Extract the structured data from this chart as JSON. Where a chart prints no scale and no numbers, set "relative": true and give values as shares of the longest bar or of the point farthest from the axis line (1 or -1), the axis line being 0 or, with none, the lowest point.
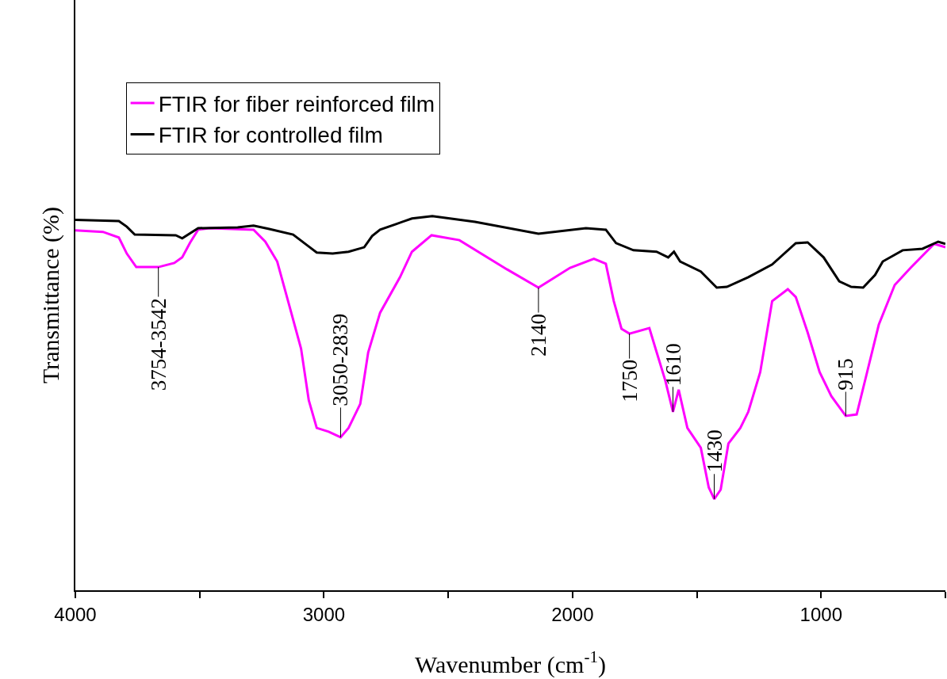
{
  "chart_data": {
    "type": "line",
    "relative": true,
    "xlabel": "Wavenumber (cm$^{-1}$)",
    "ylabel": "Transmittance (%)",
    "xlim": [
      4000,
      500
    ],
    "xticks": [
      4000,
      {
        "value": 3500,
        "label": null
      },
      3000,
      {
        "value": 2500,
        "label": null
      },
      2000,
      {
        "value": 1500,
        "label": null
      },
      1000,
      {
        "value": 500,
        "label": null
      }
    ],
    "legend": "top left",
    "grid": false,
    "marker": "none",
    "line_style": "solid",
    "tick_labels": "x",
    "series": [
      {
        "name": "FTIR for fiber reinforced film",
        "color": "#ff00ff",
        "x": [
          4000,
          3889,
          3825,
          3793,
          3755,
          3666,
          3602,
          3570,
          3538,
          3506,
          3459,
          3283,
          3236,
          3188,
          3140,
          3092,
          3061,
          3029,
          2981,
          2933,
          2901,
          2854,
          2822,
          2774,
          2694,
          2646,
          2567,
          2455,
          2264,
          2137,
          2010,
          1914,
          1866,
          1834,
          1803,
          1771,
          1691,
          1666,
          1627,
          1596,
          1573,
          1538,
          1484,
          1452,
          1430,
          1404,
          1373,
          1325,
          1293,
          1245,
          1197,
          1134,
          1102,
          1054,
          1006,
          959,
          901,
          857,
          815,
          768,
          704,
          640,
          545,
          500
        ],
        "values": [
          0.962,
          0.958,
          0.943,
          0.9,
          0.864,
          0.864,
          0.875,
          0.89,
          0.93,
          0.964,
          0.968,
          0.964,
          0.932,
          0.879,
          0.763,
          0.646,
          0.508,
          0.434,
          0.424,
          0.409,
          0.434,
          0.498,
          0.636,
          0.742,
          0.837,
          0.905,
          0.949,
          0.936,
          0.858,
          0.809,
          0.862,
          0.886,
          0.873,
          0.773,
          0.699,
          0.686,
          0.701,
          0.646,
          0.561,
          0.477,
          0.536,
          0.434,
          0.381,
          0.275,
          0.244,
          0.269,
          0.392,
          0.434,
          0.477,
          0.583,
          0.773,
          0.805,
          0.784,
          0.689,
          0.583,
          0.519,
          0.466,
          0.47,
          0.583,
          0.71,
          0.816,
          0.862,
          0.926,
          0.917
        ]
      },
      {
        "name": "FTIR for controlled film",
        "color": "#000000",
        "x": [
          4000,
          3825,
          3793,
          3761,
          3596,
          3570,
          3506,
          3347,
          3283,
          3220,
          3124,
          3061,
          3029,
          2965,
          2901,
          2838,
          2806,
          2774,
          2710,
          2646,
          2564,
          2392,
          2137,
          1946,
          1866,
          1825,
          1755,
          1662,
          1615,
          1592,
          1567,
          1484,
          1420,
          1379,
          1293,
          1197,
          1102,
          1054,
          990,
          927,
          879,
          831,
          783,
          752,
          672,
          592,
          529,
          500
        ],
        "values": [
          0.99,
          0.987,
          0.972,
          0.951,
          0.949,
          0.941,
          0.968,
          0.97,
          0.975,
          0.966,
          0.951,
          0.919,
          0.903,
          0.9,
          0.905,
          0.917,
          0.947,
          0.964,
          0.979,
          0.994,
          1.0,
          0.985,
          0.953,
          0.968,
          0.964,
          0.928,
          0.909,
          0.905,
          0.89,
          0.905,
          0.879,
          0.852,
          0.809,
          0.811,
          0.837,
          0.871,
          0.928,
          0.93,
          0.89,
          0.826,
          0.811,
          0.809,
          0.843,
          0.879,
          0.909,
          0.913,
          0.932,
          0.926
        ]
      }
    ],
    "annotations": [
      {
        "text": "3754-3542",
        "x": 3666,
        "y": 0.864
      },
      {
        "text": "3050-2839",
        "x": 2933,
        "y": 0.409
      },
      {
        "text": "2140",
        "x": 2137,
        "y": 0.809
      },
      {
        "text": "1750",
        "x": 1771,
        "y": 0.686
      },
      {
        "text": "1610",
        "x": 1596,
        "y": 0.477
      },
      {
        "text": "1430",
        "x": 1430,
        "y": 0.244
      },
      {
        "text": "915",
        "x": 901,
        "y": 0.466
      }
    ]
  }
}
